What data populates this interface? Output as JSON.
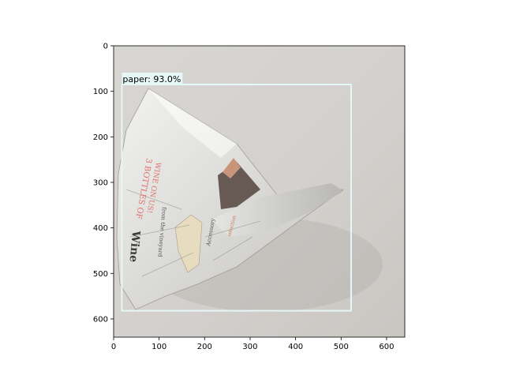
{
  "chart_data": {
    "type": "image-with-detection",
    "image_width": 640,
    "image_height": 640,
    "xlim": [
      0,
      640
    ],
    "ylim": [
      640,
      0
    ],
    "x_ticks": [
      0,
      100,
      200,
      300,
      400,
      500,
      600
    ],
    "y_ticks": [
      0,
      100,
      200,
      300,
      400,
      500,
      600
    ],
    "x_tick_labels": [
      "0",
      "100",
      "200",
      "300",
      "400",
      "500",
      "600"
    ],
    "y_tick_labels": [
      "0",
      "100",
      "200",
      "300",
      "400",
      "500",
      "600"
    ],
    "detections": [
      {
        "label": "paper: 93.0%",
        "class": "paper",
        "score": 0.93,
        "box": {
          "x_min": 18,
          "y_min": 85,
          "x_max": 522,
          "y_max": 582
        }
      }
    ],
    "colors": {
      "box": "#e6f7f7",
      "label_background": "#e6f7f7",
      "label_text": "#000000",
      "background": "#d6d3d0"
    }
  }
}
